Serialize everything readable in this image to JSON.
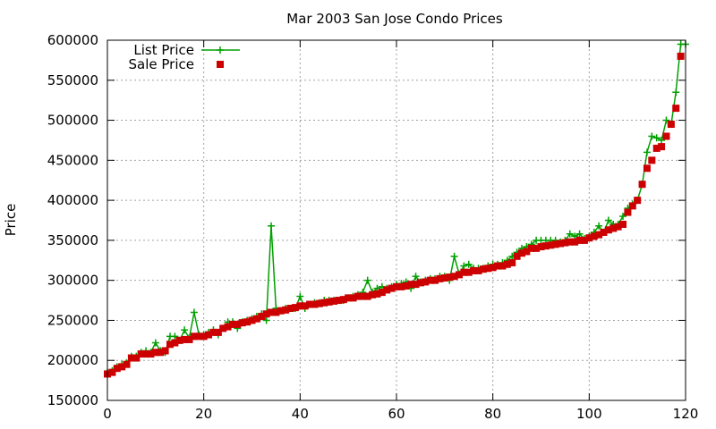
{
  "chart_data": {
    "type": "line",
    "title": "Mar 2003 San Jose Condo Prices",
    "xlabel": "",
    "ylabel": "Price",
    "xlim": [
      0,
      120
    ],
    "ylim": [
      150000,
      600000
    ],
    "x_ticks": [
      "0",
      "20",
      "40",
      "60",
      "80",
      "100",
      "120"
    ],
    "y_ticks": [
      "150000",
      "200000",
      "250000",
      "300000",
      "350000",
      "400000",
      "450000",
      "500000",
      "550000",
      "600000"
    ],
    "grid": true,
    "legend_position": "top-left",
    "series": [
      {
        "name": "List Price",
        "color": "#00a000",
        "marker": "plus",
        "x": [
          0,
          1,
          2,
          3,
          4,
          5,
          6,
          7,
          8,
          9,
          10,
          11,
          12,
          13,
          14,
          15,
          16,
          17,
          18,
          19,
          20,
          21,
          22,
          23,
          24,
          25,
          26,
          27,
          28,
          29,
          30,
          31,
          32,
          33,
          34,
          35,
          36,
          37,
          38,
          39,
          40,
          41,
          42,
          43,
          44,
          45,
          46,
          47,
          48,
          49,
          50,
          51,
          52,
          53,
          54,
          55,
          56,
          57,
          58,
          59,
          60,
          61,
          62,
          63,
          64,
          65,
          66,
          67,
          68,
          69,
          70,
          71,
          72,
          73,
          74,
          75,
          76,
          77,
          78,
          79,
          80,
          81,
          82,
          83,
          84,
          85,
          86,
          87,
          88,
          89,
          90,
          91,
          92,
          93,
          94,
          95,
          96,
          97,
          98,
          99,
          100,
          101,
          102,
          103,
          104,
          105,
          106,
          107,
          108,
          109,
          110,
          111,
          112,
          113,
          114,
          115,
          116,
          117,
          118,
          119,
          120
        ],
        "values": [
          185000,
          187000,
          192000,
          195000,
          197000,
          205000,
          205000,
          210000,
          212000,
          210000,
          222000,
          212000,
          210000,
          230000,
          230000,
          225000,
          238000,
          228000,
          260000,
          232000,
          232000,
          235000,
          238000,
          232000,
          240000,
          248000,
          248000,
          240000,
          248000,
          250000,
          252000,
          255000,
          258000,
          250000,
          368000,
          265000,
          262000,
          265000,
          265000,
          265000,
          280000,
          265000,
          270000,
          272000,
          272000,
          275000,
          275000,
          275000,
          275000,
          275000,
          278000,
          280000,
          282000,
          285000,
          300000,
          285000,
          290000,
          292000,
          290000,
          292000,
          295000,
          296000,
          298000,
          290000,
          305000,
          298000,
          300000,
          302000,
          302000,
          305000,
          305000,
          300000,
          330000,
          308000,
          318000,
          320000,
          315000,
          315000,
          315000,
          318000,
          320000,
          320000,
          322000,
          325000,
          330000,
          335000,
          340000,
          342000,
          345000,
          350000,
          350000,
          350000,
          350000,
          350000,
          348000,
          350000,
          358000,
          355000,
          358000,
          352000,
          355000,
          360000,
          368000,
          360000,
          375000,
          370000,
          370000,
          380000,
          390000,
          395000,
          400000,
          420000,
          460000,
          480000,
          478000,
          475000,
          500000,
          495000,
          535000,
          595000,
          595000
        ]
      },
      {
        "name": "Sale Price",
        "color": "#cc0000",
        "marker": "square",
        "x": [
          0,
          1,
          2,
          3,
          4,
          5,
          6,
          7,
          8,
          9,
          10,
          11,
          12,
          13,
          14,
          15,
          16,
          17,
          18,
          19,
          20,
          21,
          22,
          23,
          24,
          25,
          26,
          27,
          28,
          29,
          30,
          31,
          32,
          33,
          34,
          35,
          36,
          37,
          38,
          39,
          40,
          41,
          42,
          43,
          44,
          45,
          46,
          47,
          48,
          49,
          50,
          51,
          52,
          53,
          54,
          55,
          56,
          57,
          58,
          59,
          60,
          61,
          62,
          63,
          64,
          65,
          66,
          67,
          68,
          69,
          70,
          71,
          72,
          73,
          74,
          75,
          76,
          77,
          78,
          79,
          80,
          81,
          82,
          83,
          84,
          85,
          86,
          87,
          88,
          89,
          90,
          91,
          92,
          93,
          94,
          95,
          96,
          97,
          98,
          99,
          100,
          101,
          102,
          103,
          104,
          105,
          106,
          107,
          108,
          109,
          110,
          111,
          112,
          113,
          114,
          115,
          116,
          117,
          118,
          119
        ],
        "values": [
          183000,
          185000,
          190000,
          192000,
          195000,
          203000,
          203000,
          208000,
          208000,
          208000,
          210000,
          210000,
          212000,
          220000,
          222000,
          225000,
          226000,
          226000,
          230000,
          230000,
          230000,
          232000,
          235000,
          235000,
          240000,
          242000,
          245000,
          245000,
          247000,
          248000,
          250000,
          252000,
          255000,
          258000,
          260000,
          260000,
          262000,
          263000,
          265000,
          266000,
          268000,
          268000,
          270000,
          270000,
          271000,
          272000,
          273000,
          274000,
          275000,
          276000,
          278000,
          278000,
          280000,
          280000,
          280000,
          282000,
          283000,
          285000,
          288000,
          290000,
          292000,
          292000,
          293000,
          295000,
          295000,
          297000,
          298000,
          300000,
          300000,
          302000,
          303000,
          304000,
          305000,
          307000,
          310000,
          310000,
          312000,
          312000,
          314000,
          315000,
          316000,
          318000,
          318000,
          320000,
          322000,
          330000,
          334000,
          336000,
          340000,
          340000,
          342000,
          343000,
          344000,
          345000,
          346000,
          347000,
          348000,
          348000,
          350000,
          350000,
          353000,
          355000,
          357000,
          360000,
          363000,
          365000,
          367000,
          370000,
          385000,
          393000,
          400000,
          420000,
          440000,
          450000,
          465000,
          467000,
          480000,
          495000,
          515000,
          580000
        ]
      }
    ]
  }
}
